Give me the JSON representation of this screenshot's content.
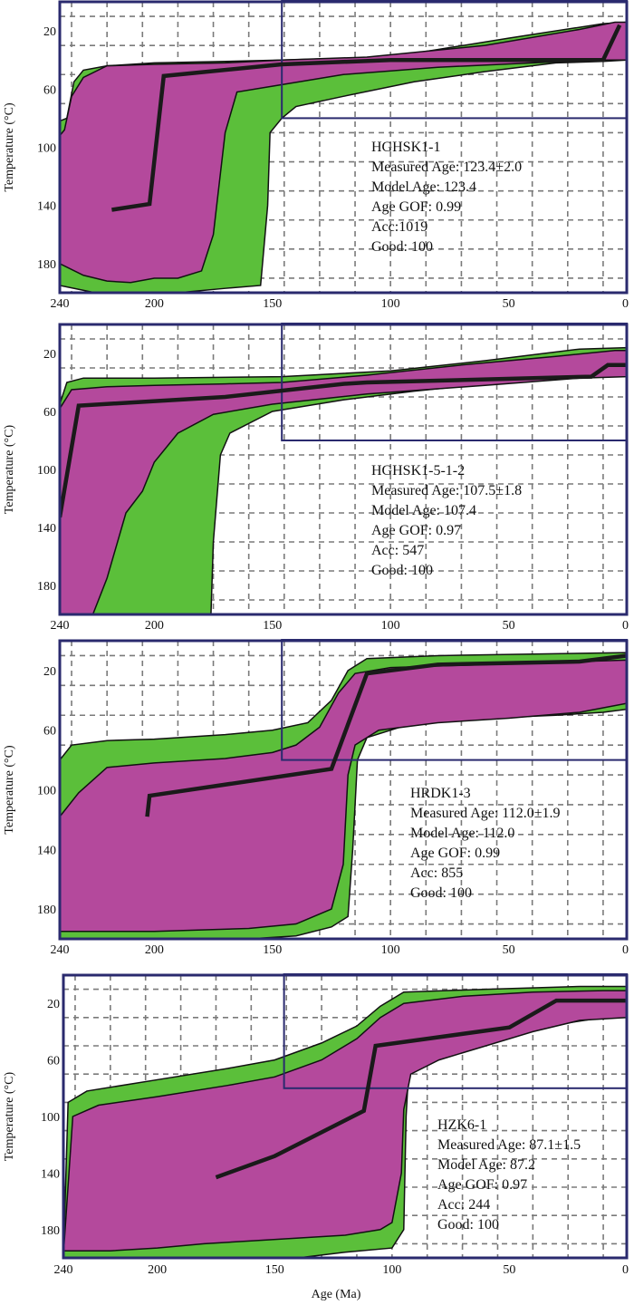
{
  "figure": {
    "x_axis_label": "Age (Ma)",
    "y_axis_label": "Temperature (°C)"
  },
  "colors": {
    "good_fit": "#5bbf3a",
    "acceptable_fit": "#b4499c",
    "best_path": "#1a1a1a",
    "constraint_box": "#2a2a6e",
    "grid": "#7a7a7a"
  },
  "chart_data": [
    {
      "type": "area",
      "sample": "HGHSK1-1",
      "info_lines": [
        "HGHSK1-1",
        "Measured Age: 123.4±2.0",
        "Model Age: 123.4",
        "Age GOF: 0.99",
        "Acc:1019",
        "Good: 100"
      ],
      "xlim": [
        240,
        0
      ],
      "ylim": [
        0,
        200
      ],
      "x_ticks": [
        240,
        200,
        150,
        100,
        50,
        0
      ],
      "y_ticks": [
        20,
        60,
        100,
        140,
        180
      ],
      "grid": true,
      "constraint_box": {
        "x": [
          146,
          0
        ],
        "y": [
          0,
          80
        ]
      },
      "good_envelope": {
        "upper": [
          [
            240,
            82
          ],
          [
            237,
            80
          ],
          [
            234,
            55
          ],
          [
            230,
            47
          ],
          [
            220,
            44
          ],
          [
            200,
            42
          ],
          [
            170,
            41
          ],
          [
            146,
            40
          ],
          [
            100,
            38
          ],
          [
            50,
            25
          ],
          [
            10,
            15
          ],
          [
            0,
            14
          ]
        ],
        "lower": [
          [
            240,
            195
          ],
          [
            225,
            200
          ],
          [
            205,
            200
          ],
          [
            190,
            200
          ],
          [
            170,
            197
          ],
          [
            155,
            195
          ],
          [
            152,
            140
          ],
          [
            151,
            90
          ],
          [
            146,
            80
          ],
          [
            140,
            72
          ],
          [
            120,
            65
          ],
          [
            90,
            55
          ],
          [
            60,
            48
          ],
          [
            30,
            42
          ],
          [
            10,
            41
          ],
          [
            0,
            40
          ]
        ]
      },
      "acceptable_envelope": {
        "upper": [
          [
            240,
            92
          ],
          [
            238,
            88
          ],
          [
            235,
            65
          ],
          [
            230,
            52
          ],
          [
            220,
            44
          ],
          [
            200,
            43
          ],
          [
            170,
            42
          ],
          [
            146,
            40
          ],
          [
            110,
            38
          ],
          [
            60,
            30
          ],
          [
            20,
            19
          ],
          [
            5,
            14
          ],
          [
            0,
            14
          ]
        ],
        "lower": [
          [
            240,
            180
          ],
          [
            230,
            188
          ],
          [
            220,
            192
          ],
          [
            210,
            193
          ],
          [
            200,
            190
          ],
          [
            190,
            190
          ],
          [
            180,
            185
          ],
          [
            175,
            160
          ],
          [
            170,
            90
          ],
          [
            165,
            62
          ],
          [
            150,
            58
          ],
          [
            120,
            50
          ],
          [
            80,
            45
          ],
          [
            40,
            42
          ],
          [
            10,
            40
          ],
          [
            0,
            40
          ]
        ]
      },
      "best_path": [
        [
          218,
          143
        ],
        [
          202,
          139
        ],
        [
          196,
          51
        ],
        [
          146,
          43
        ],
        [
          100,
          40
        ],
        [
          20,
          40
        ],
        [
          10,
          40
        ],
        [
          3,
          16
        ]
      ]
    },
    {
      "type": "area",
      "sample": "HGHSK1-5-1-2",
      "info_lines": [
        "HGHSK1-5-1-2",
        "Measured Age: 107.5±1.8",
        "Model Age: 107.4",
        "Age GOF: 0.97",
        "Acc: 547",
        "Good: 100"
      ],
      "xlim": [
        240,
        0
      ],
      "ylim": [
        0,
        200
      ],
      "x_ticks": [
        240,
        200,
        150,
        100,
        50,
        0
      ],
      "y_ticks": [
        20,
        60,
        100,
        140,
        180
      ],
      "grid": true,
      "constraint_box": {
        "x": [
          146,
          0
        ],
        "y": [
          0,
          80
        ]
      },
      "good_envelope": {
        "upper": [
          [
            240,
            55
          ],
          [
            237,
            40
          ],
          [
            230,
            37
          ],
          [
            200,
            37
          ],
          [
            146,
            36
          ],
          [
            100,
            32
          ],
          [
            60,
            25
          ],
          [
            20,
            17
          ],
          [
            0,
            16
          ]
        ],
        "lower": [
          [
            240,
            200
          ],
          [
            230,
            200
          ],
          [
            220,
            200
          ],
          [
            200,
            200
          ],
          [
            180,
            200
          ],
          [
            176,
            200
          ],
          [
            175,
            150
          ],
          [
            172,
            90
          ],
          [
            168,
            75
          ],
          [
            150,
            60
          ],
          [
            120,
            52
          ],
          [
            90,
            46
          ],
          [
            60,
            41
          ],
          [
            30,
            37
          ],
          [
            0,
            35
          ]
        ]
      },
      "acceptable_envelope": {
        "upper": [
          [
            240,
            58
          ],
          [
            235,
            45
          ],
          [
            220,
            43
          ],
          [
            200,
            42
          ],
          [
            170,
            41
          ],
          [
            146,
            40
          ],
          [
            110,
            35
          ],
          [
            70,
            28
          ],
          [
            30,
            22
          ],
          [
            5,
            18
          ],
          [
            0,
            18
          ]
        ],
        "lower": [
          [
            240,
            200
          ],
          [
            230,
            200
          ],
          [
            226,
            200
          ],
          [
            220,
            175
          ],
          [
            212,
            130
          ],
          [
            205,
            115
          ],
          [
            200,
            95
          ],
          [
            190,
            75
          ],
          [
            175,
            62
          ],
          [
            150,
            55
          ],
          [
            110,
            48
          ],
          [
            60,
            42
          ],
          [
            20,
            37
          ],
          [
            0,
            36
          ]
        ]
      },
      "best_path": [
        [
          240,
          133
        ],
        [
          232,
          56
        ],
        [
          170,
          50
        ],
        [
          120,
          41
        ],
        [
          110,
          40
        ],
        [
          15,
          36
        ],
        [
          8,
          28
        ],
        [
          0,
          28
        ]
      ]
    },
    {
      "type": "area",
      "sample": "HRDK1-3",
      "info_lines": [
        "HRDK1-3",
        "Measured Age: 112.0±1.9",
        "Model Age: 112.0",
        "Age GOF: 0.99",
        "Acc: 855",
        "Good: 100"
      ],
      "xlim": [
        240,
        0
      ],
      "ylim": [
        0,
        200
      ],
      "x_ticks": [
        240,
        200,
        150,
        100,
        50,
        0
      ],
      "y_ticks": [
        20,
        60,
        100,
        140,
        180
      ],
      "grid": true,
      "constraint_box": {
        "x": [
          146,
          0
        ],
        "y": [
          0,
          80
        ]
      },
      "good_envelope": {
        "upper": [
          [
            240,
            80
          ],
          [
            235,
            70
          ],
          [
            220,
            67
          ],
          [
            200,
            66
          ],
          [
            170,
            63
          ],
          [
            150,
            60
          ],
          [
            135,
            55
          ],
          [
            125,
            40
          ],
          [
            118,
            20
          ],
          [
            110,
            12
          ],
          [
            80,
            10
          ],
          [
            40,
            9
          ],
          [
            0,
            8
          ]
        ],
        "lower": [
          [
            240,
            200
          ],
          [
            220,
            200
          ],
          [
            200,
            200
          ],
          [
            180,
            200
          ],
          [
            160,
            200
          ],
          [
            140,
            198
          ],
          [
            125,
            192
          ],
          [
            118,
            185
          ],
          [
            116,
            140
          ],
          [
            114,
            80
          ],
          [
            110,
            65
          ],
          [
            90,
            55
          ],
          [
            60,
            52
          ],
          [
            30,
            50
          ],
          [
            10,
            48
          ],
          [
            0,
            46
          ]
        ]
      },
      "acceptable_envelope": {
        "upper": [
          [
            240,
            118
          ],
          [
            232,
            102
          ],
          [
            220,
            85
          ],
          [
            200,
            82
          ],
          [
            170,
            79
          ],
          [
            150,
            75
          ],
          [
            140,
            70
          ],
          [
            130,
            58
          ],
          [
            122,
            35
          ],
          [
            115,
            22
          ],
          [
            100,
            18
          ],
          [
            60,
            16
          ],
          [
            20,
            14
          ],
          [
            0,
            13
          ]
        ],
        "lower": [
          [
            240,
            195
          ],
          [
            220,
            195
          ],
          [
            200,
            195
          ],
          [
            180,
            194
          ],
          [
            160,
            193
          ],
          [
            140,
            190
          ],
          [
            125,
            180
          ],
          [
            120,
            150
          ],
          [
            118,
            90
          ],
          [
            115,
            70
          ],
          [
            105,
            60
          ],
          [
            80,
            55
          ],
          [
            50,
            52
          ],
          [
            20,
            48
          ],
          [
            0,
            42
          ]
        ]
      },
      "best_path": [
        [
          203,
          118
        ],
        [
          202,
          104
        ],
        [
          125,
          86
        ],
        [
          110,
          22
        ],
        [
          80,
          16
        ],
        [
          20,
          14
        ],
        [
          0,
          10
        ]
      ]
    },
    {
      "type": "area",
      "sample": "HZK6-1",
      "info_lines": [
        "HZK6-1",
        "Measured Age: 87.1±1.5",
        "Model Age: 87.2",
        "Age GOF: 0.97",
        "Acc: 244",
        "Good: 100"
      ],
      "xlim": [
        240,
        0
      ],
      "ylim": [
        0,
        200
      ],
      "x_ticks": [
        240,
        200,
        150,
        100,
        50,
        0
      ],
      "y_ticks": [
        20,
        60,
        100,
        140,
        180
      ],
      "grid": true,
      "constraint_box": {
        "x": [
          146,
          0
        ],
        "y": [
          0,
          80
        ]
      },
      "good_envelope": {
        "upper": [
          [
            240,
            200
          ],
          [
            238,
            90
          ],
          [
            230,
            82
          ],
          [
            200,
            74
          ],
          [
            170,
            66
          ],
          [
            150,
            60
          ],
          [
            130,
            48
          ],
          [
            115,
            36
          ],
          [
            105,
            22
          ],
          [
            95,
            12
          ],
          [
            60,
            10
          ],
          [
            20,
            8
          ],
          [
            0,
            8
          ]
        ],
        "lower": [
          [
            240,
            200
          ],
          [
            220,
            200
          ],
          [
            200,
            200
          ],
          [
            180,
            200
          ],
          [
            160,
            200
          ],
          [
            150,
            200
          ],
          [
            140,
            200
          ],
          [
            120,
            196
          ],
          [
            100,
            193
          ],
          [
            95,
            180
          ],
          [
            94,
            100
          ],
          [
            93,
            70
          ],
          [
            80,
            55
          ],
          [
            60,
            45
          ],
          [
            30,
            35
          ],
          [
            10,
            30
          ],
          [
            0,
            28
          ]
        ]
      },
      "acceptable_envelope": {
        "upper": [
          [
            240,
            198
          ],
          [
            236,
            100
          ],
          [
            225,
            92
          ],
          [
            200,
            86
          ],
          [
            170,
            78
          ],
          [
            150,
            72
          ],
          [
            130,
            60
          ],
          [
            115,
            45
          ],
          [
            105,
            30
          ],
          [
            95,
            20
          ],
          [
            70,
            15
          ],
          [
            40,
            12
          ],
          [
            10,
            11
          ],
          [
            0,
            11
          ]
        ],
        "lower": [
          [
            240,
            195
          ],
          [
            220,
            195
          ],
          [
            200,
            193
          ],
          [
            180,
            190
          ],
          [
            160,
            188
          ],
          [
            140,
            186
          ],
          [
            120,
            184
          ],
          [
            105,
            180
          ],
          [
            100,
            175
          ],
          [
            96,
            140
          ],
          [
            95,
            95
          ],
          [
            92,
            70
          ],
          [
            80,
            60
          ],
          [
            60,
            50
          ],
          [
            40,
            40
          ],
          [
            20,
            32
          ],
          [
            0,
            30
          ]
        ]
      },
      "best_path": [
        [
          175,
          143
        ],
        [
          150,
          128
        ],
        [
          112,
          96
        ],
        [
          107,
          50
        ],
        [
          50,
          37
        ],
        [
          30,
          18
        ],
        [
          0,
          18
        ]
      ]
    }
  ]
}
